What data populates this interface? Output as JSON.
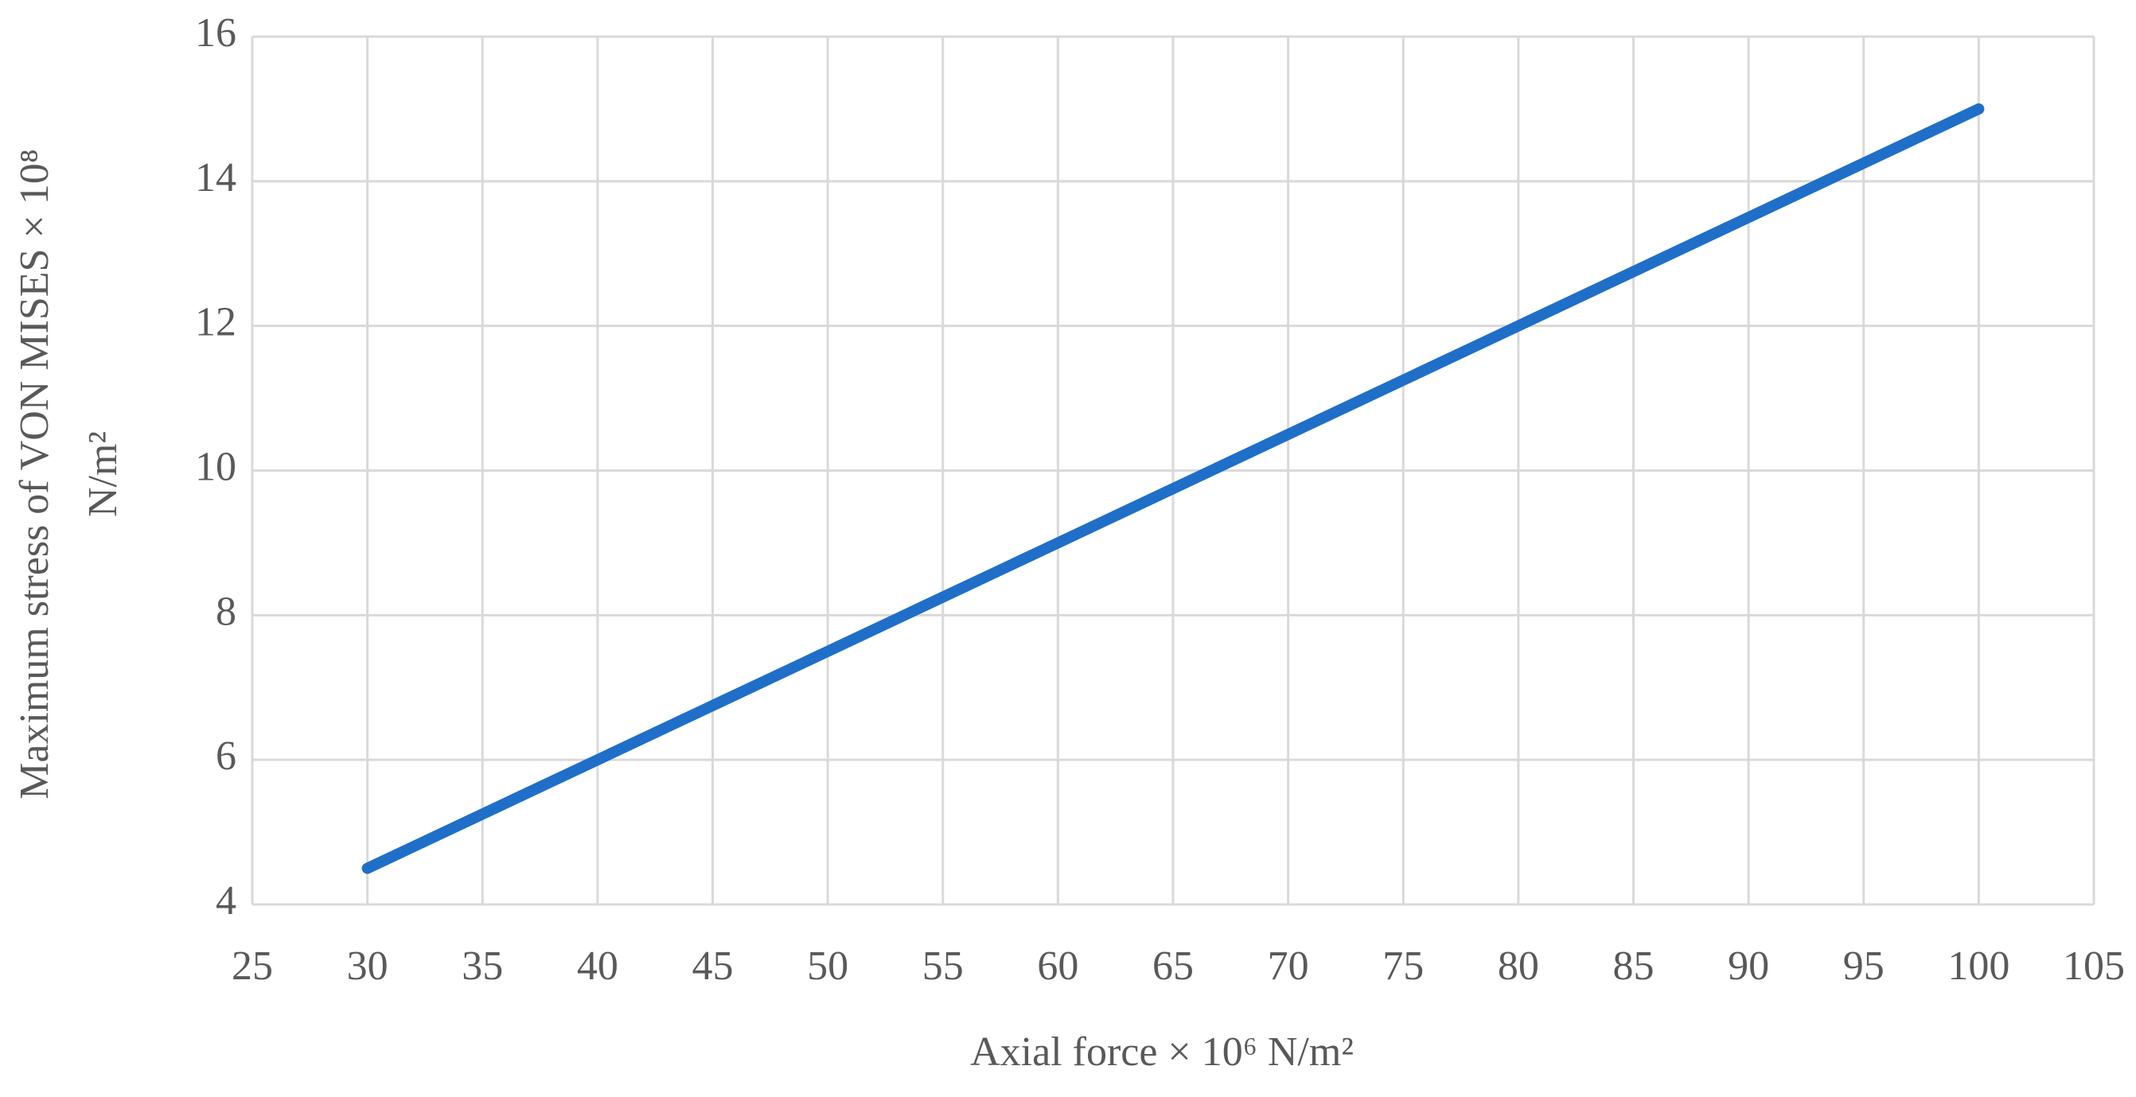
{
  "chart_data": {
    "type": "line",
    "x_label": "Axial force × 10⁶ N/m²",
    "y_label": [
      "Maximum stress of VON MISES × 10⁸",
      "N/m²"
    ],
    "x": [
      30,
      40,
      50,
      60,
      70,
      80,
      90,
      100
    ],
    "values": [
      4.5,
      6,
      7.5,
      9,
      10.5,
      12,
      13.5,
      15
    ],
    "color": "#1f6fc8",
    "xlim": [
      25,
      105
    ],
    "xticks": [
      25,
      30,
      35,
      40,
      45,
      50,
      55,
      60,
      65,
      70,
      75,
      80,
      85,
      90,
      95,
      100,
      105
    ],
    "ylim": [
      4,
      16
    ],
    "yticks": [
      4,
      6,
      8,
      10,
      12,
      14,
      16
    ],
    "grid": true
  }
}
